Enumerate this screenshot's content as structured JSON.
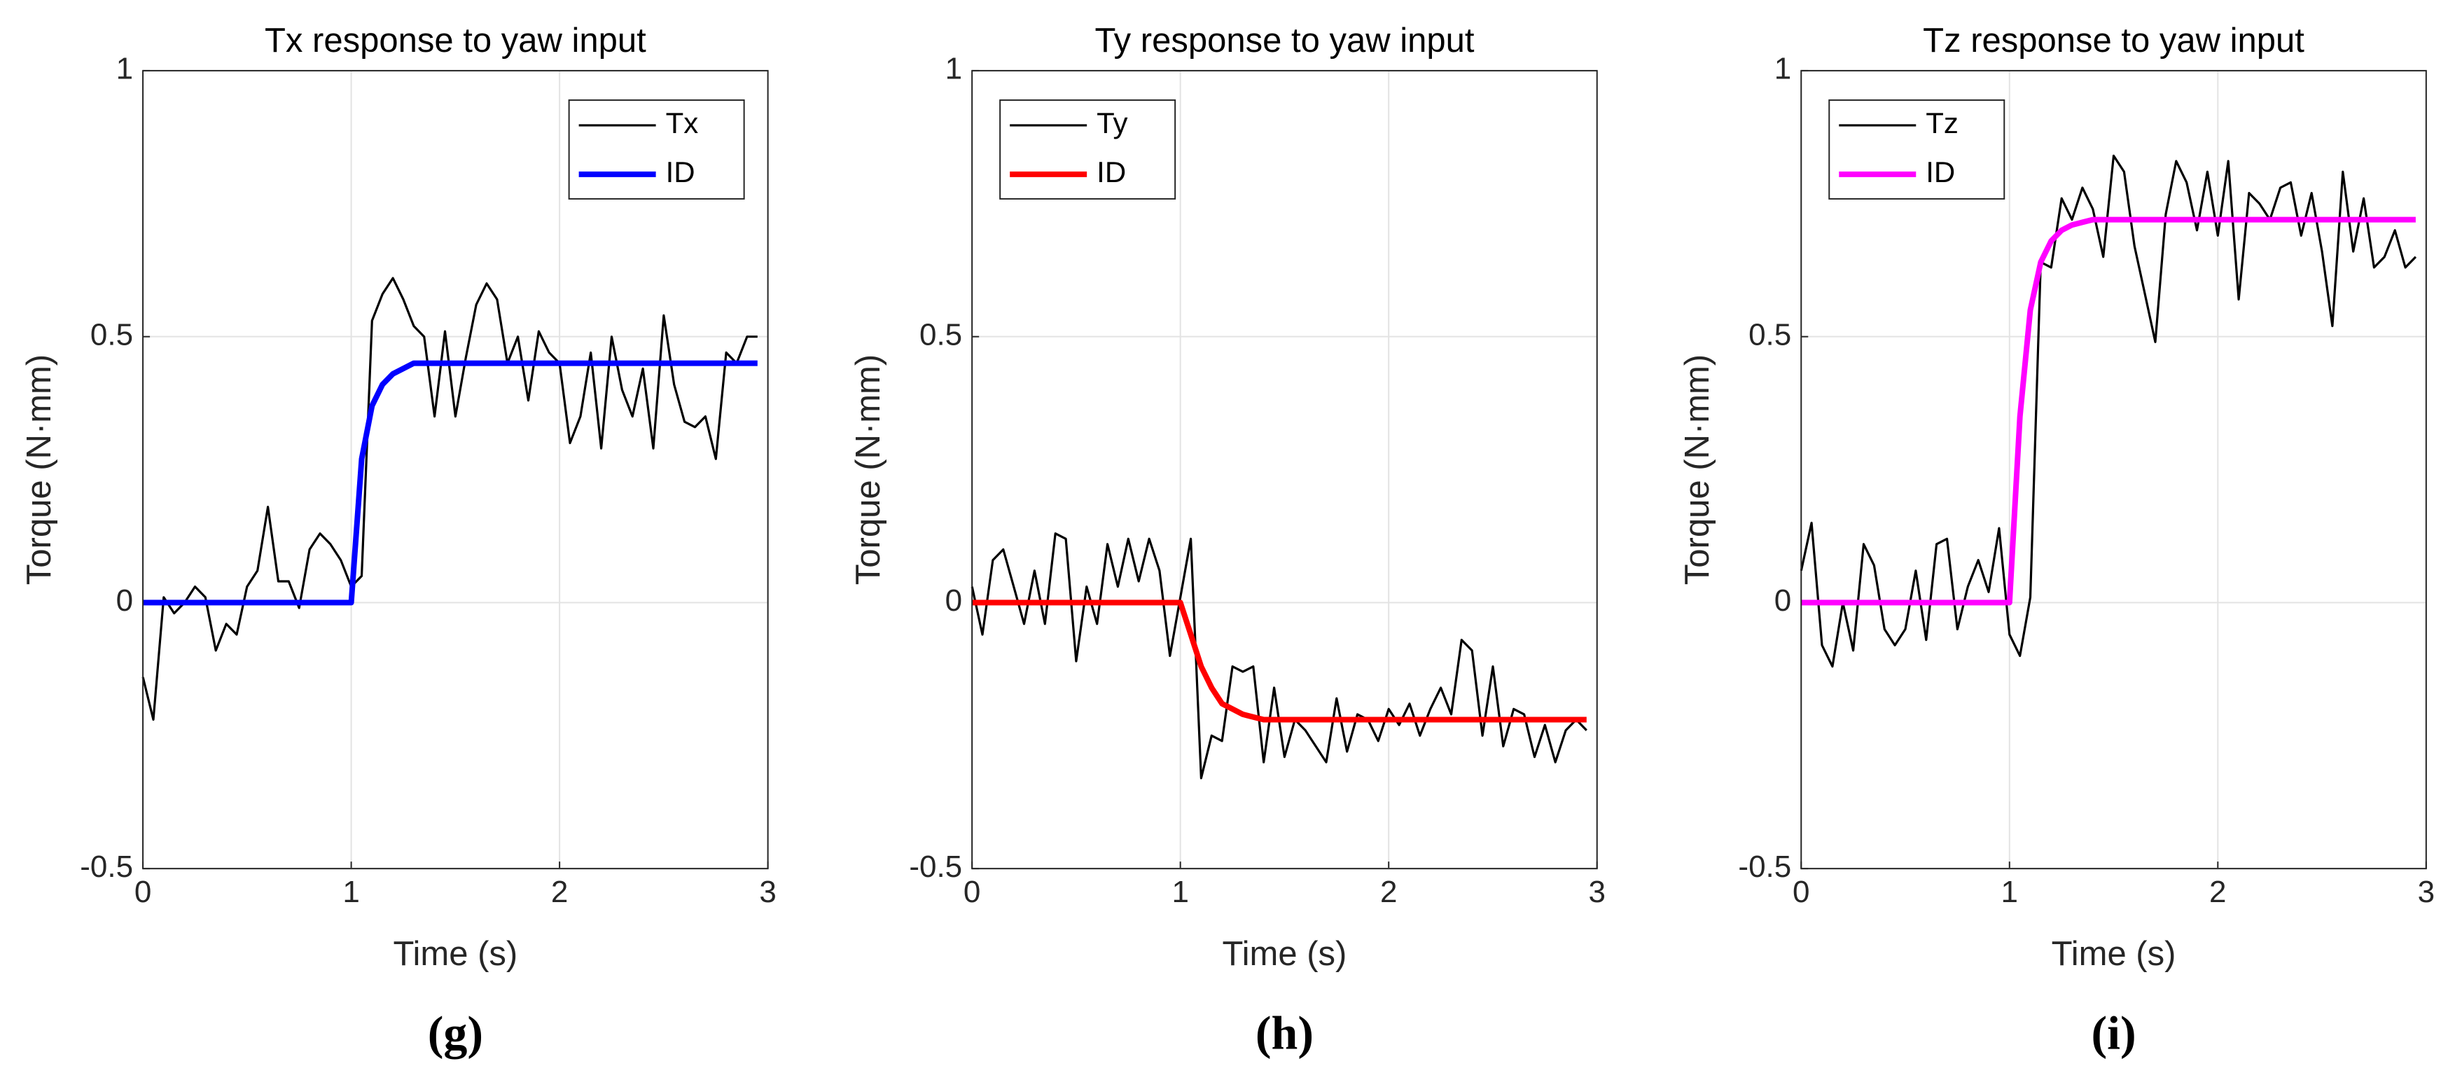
{
  "chart_data": [
    {
      "type": "line",
      "title": "Tx response to yaw input",
      "xlabel": "Time (s)",
      "ylabel": "Torque (N·mm)",
      "panel_label": "(g)",
      "x": [
        0,
        0.05,
        0.1,
        0.15,
        0.2,
        0.25,
        0.3,
        0.35,
        0.4,
        0.45,
        0.5,
        0.55,
        0.6,
        0.65,
        0.7,
        0.75,
        0.8,
        0.85,
        0.9,
        0.95,
        1,
        1.05,
        1.1,
        1.15,
        1.2,
        1.25,
        1.3,
        1.35,
        1.4,
        1.45,
        1.5,
        1.55,
        1.6,
        1.65,
        1.7,
        1.75,
        1.8,
        1.85,
        1.9,
        1.95,
        2,
        2.05,
        2.1,
        2.15,
        2.2,
        2.25,
        2.3,
        2.35,
        2.4,
        2.45,
        2.5,
        2.55,
        2.6,
        2.65,
        2.7,
        2.75,
        2.8,
        2.85,
        2.9,
        2.95
      ],
      "series": [
        {
          "name": "Tx",
          "color": "#000000",
          "width": 2,
          "values": [
            -0.14,
            -0.22,
            0.01,
            -0.02,
            0,
            0.03,
            0.01,
            -0.09,
            -0.04,
            -0.06,
            0.03,
            0.06,
            0.18,
            0.04,
            0.04,
            -0.01,
            0.1,
            0.13,
            0.11,
            0.08,
            0.03,
            0.05,
            0.53,
            0.58,
            0.61,
            0.57,
            0.52,
            0.5,
            0.35,
            0.51,
            0.35,
            0.46,
            0.56,
            0.6,
            0.57,
            0.45,
            0.5,
            0.38,
            0.51,
            0.47,
            0.45,
            0.3,
            0.35,
            0.47,
            0.29,
            0.5,
            0.4,
            0.35,
            0.44,
            0.29,
            0.54,
            0.41,
            0.34,
            0.33,
            0.35,
            0.27,
            0.47,
            0.45,
            0.5,
            0.5
          ]
        },
        {
          "name": "ID",
          "color": "#0000ff",
          "width": 5,
          "values": [
            0,
            0,
            0,
            0,
            0,
            0,
            0,
            0,
            0,
            0,
            0,
            0,
            0,
            0,
            0,
            0,
            0,
            0,
            0,
            0,
            0,
            0.27,
            0.37,
            0.41,
            0.43,
            0.44,
            0.45,
            0.45,
            0.45,
            0.45,
            0.45,
            0.45,
            0.45,
            0.45,
            0.45,
            0.45,
            0.45,
            0.45,
            0.45,
            0.45,
            0.45,
            0.45,
            0.45,
            0.45,
            0.45,
            0.45,
            0.45,
            0.45,
            0.45,
            0.45,
            0.45,
            0.45,
            0.45,
            0.45,
            0.45,
            0.45,
            0.45,
            0.45,
            0.45,
            0.45
          ]
        }
      ],
      "xlim": [
        0,
        3
      ],
      "ylim": [
        -0.5,
        1
      ],
      "xticks": [
        0,
        1,
        2,
        3
      ],
      "yticks": [
        -0.5,
        0,
        0.5,
        1
      ],
      "grid": true,
      "legend": "upper right"
    },
    {
      "type": "line",
      "title": "Ty response to yaw input",
      "xlabel": "Time (s)",
      "ylabel": "Torque (N·mm)",
      "panel_label": "(h)",
      "x": [
        0,
        0.05,
        0.1,
        0.15,
        0.2,
        0.25,
        0.3,
        0.35,
        0.4,
        0.45,
        0.5,
        0.55,
        0.6,
        0.65,
        0.7,
        0.75,
        0.8,
        0.85,
        0.9,
        0.95,
        1,
        1.05,
        1.1,
        1.15,
        1.2,
        1.25,
        1.3,
        1.35,
        1.4,
        1.45,
        1.5,
        1.55,
        1.6,
        1.65,
        1.7,
        1.75,
        1.8,
        1.85,
        1.9,
        1.95,
        2,
        2.05,
        2.1,
        2.15,
        2.2,
        2.25,
        2.3,
        2.35,
        2.4,
        2.45,
        2.5,
        2.55,
        2.6,
        2.65,
        2.7,
        2.75,
        2.8,
        2.85,
        2.9,
        2.95
      ],
      "series": [
        {
          "name": "Ty",
          "color": "#000000",
          "width": 2,
          "values": [
            0.03,
            -0.06,
            0.08,
            0.1,
            0.03,
            -0.04,
            0.06,
            -0.04,
            0.13,
            0.12,
            -0.11,
            0.03,
            -0.04,
            0.11,
            0.03,
            0.12,
            0.04,
            0.12,
            0.06,
            -0.1,
            0.01,
            0.12,
            -0.33,
            -0.25,
            -0.26,
            -0.12,
            -0.13,
            -0.12,
            -0.3,
            -0.16,
            -0.29,
            -0.22,
            -0.24,
            -0.27,
            -0.3,
            -0.18,
            -0.28,
            -0.21,
            -0.22,
            -0.26,
            -0.2,
            -0.23,
            -0.19,
            -0.25,
            -0.2,
            -0.16,
            -0.21,
            -0.07,
            -0.09,
            -0.25,
            -0.12,
            -0.27,
            -0.2,
            -0.21,
            -0.29,
            -0.23,
            -0.3,
            -0.24,
            -0.22,
            -0.24
          ]
        },
        {
          "name": "ID",
          "color": "#ff0000",
          "width": 5,
          "values": [
            0,
            0,
            0,
            0,
            0,
            0,
            0,
            0,
            0,
            0,
            0,
            0,
            0,
            0,
            0,
            0,
            0,
            0,
            0,
            0,
            0,
            -0.06,
            -0.12,
            -0.16,
            -0.19,
            -0.2,
            -0.21,
            -0.215,
            -0.22,
            -0.22,
            -0.22,
            -0.22,
            -0.22,
            -0.22,
            -0.22,
            -0.22,
            -0.22,
            -0.22,
            -0.22,
            -0.22,
            -0.22,
            -0.22,
            -0.22,
            -0.22,
            -0.22,
            -0.22,
            -0.22,
            -0.22,
            -0.22,
            -0.22,
            -0.22,
            -0.22,
            -0.22,
            -0.22,
            -0.22,
            -0.22,
            -0.22,
            -0.22,
            -0.22,
            -0.22
          ]
        }
      ],
      "xlim": [
        0,
        3
      ],
      "ylim": [
        -0.5,
        1
      ],
      "xticks": [
        0,
        1,
        2,
        3
      ],
      "yticks": [
        -0.5,
        0,
        0.5,
        1
      ],
      "grid": true,
      "legend": "upper left"
    },
    {
      "type": "line",
      "title": "Tz response to yaw input",
      "xlabel": "Time (s)",
      "ylabel": "Torque (N·mm)",
      "panel_label": "(i)",
      "x": [
        0,
        0.05,
        0.1,
        0.15,
        0.2,
        0.25,
        0.3,
        0.35,
        0.4,
        0.45,
        0.5,
        0.55,
        0.6,
        0.65,
        0.7,
        0.75,
        0.8,
        0.85,
        0.9,
        0.95,
        1,
        1.05,
        1.1,
        1.15,
        1.2,
        1.25,
        1.3,
        1.35,
        1.4,
        1.45,
        1.5,
        1.55,
        1.6,
        1.65,
        1.7,
        1.75,
        1.8,
        1.85,
        1.9,
        1.95,
        2,
        2.05,
        2.1,
        2.15,
        2.2,
        2.25,
        2.3,
        2.35,
        2.4,
        2.45,
        2.5,
        2.55,
        2.6,
        2.65,
        2.7,
        2.75,
        2.8,
        2.85,
        2.9,
        2.95
      ],
      "series": [
        {
          "name": "Tz",
          "color": "#000000",
          "width": 2,
          "values": [
            0.06,
            0.15,
            -0.08,
            -0.12,
            0,
            -0.09,
            0.11,
            0.07,
            -0.05,
            -0.08,
            -0.05,
            0.06,
            -0.07,
            0.11,
            0.12,
            -0.05,
            0.03,
            0.08,
            0.02,
            0.14,
            -0.06,
            -0.1,
            0.01,
            0.64,
            0.63,
            0.76,
            0.72,
            0.78,
            0.74,
            0.65,
            0.84,
            0.81,
            0.67,
            0.58,
            0.49,
            0.73,
            0.83,
            0.79,
            0.7,
            0.81,
            0.69,
            0.83,
            0.57,
            0.77,
            0.75,
            0.72,
            0.78,
            0.79,
            0.69,
            0.77,
            0.66,
            0.52,
            0.81,
            0.66,
            0.76,
            0.63,
            0.65,
            0.7,
            0.63,
            0.65
          ]
        },
        {
          "name": "ID",
          "color": "#ff00ff",
          "width": 5,
          "values": [
            0,
            0,
            0,
            0,
            0,
            0,
            0,
            0,
            0,
            0,
            0,
            0,
            0,
            0,
            0,
            0,
            0,
            0,
            0,
            0,
            0,
            0.35,
            0.55,
            0.64,
            0.68,
            0.7,
            0.71,
            0.715,
            0.72,
            0.72,
            0.72,
            0.72,
            0.72,
            0.72,
            0.72,
            0.72,
            0.72,
            0.72,
            0.72,
            0.72,
            0.72,
            0.72,
            0.72,
            0.72,
            0.72,
            0.72,
            0.72,
            0.72,
            0.72,
            0.72,
            0.72,
            0.72,
            0.72,
            0.72,
            0.72,
            0.72,
            0.72,
            0.72,
            0.72,
            0.72
          ]
        }
      ],
      "xlim": [
        0,
        3
      ],
      "ylim": [
        -0.5,
        1
      ],
      "xticks": [
        0,
        1,
        2,
        3
      ],
      "yticks": [
        -0.5,
        0,
        0.5,
        1
      ],
      "grid": true,
      "legend": "upper left"
    }
  ]
}
